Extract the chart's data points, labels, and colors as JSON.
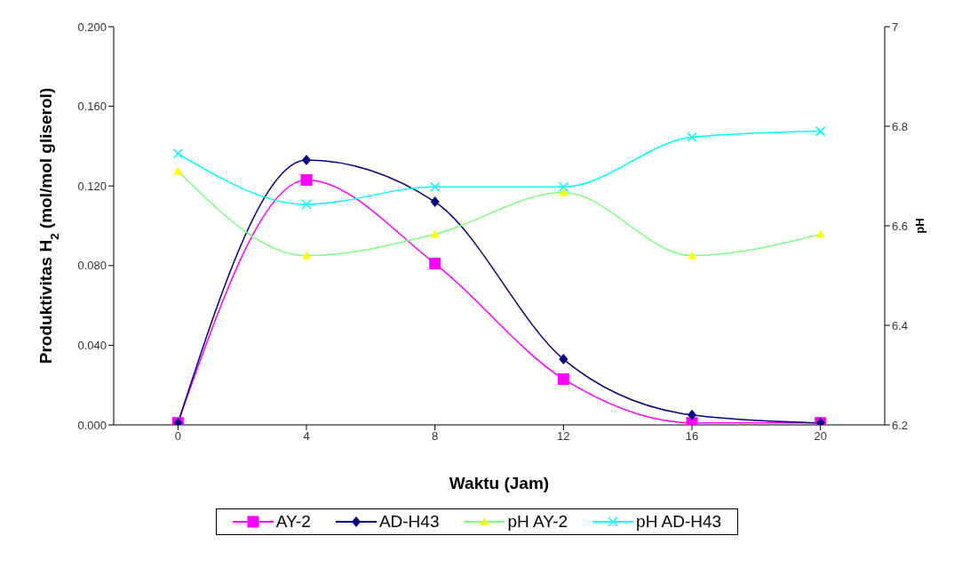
{
  "chart_data": {
    "type": "line",
    "xlabel": "Waktu (Jam)",
    "ylabel": "Produktivitas H$_{2}$ (mol/mol gliserol)",
    "y2label": "pH",
    "x": [
      0,
      4,
      8,
      12,
      16,
      20
    ],
    "xlim": [
      -2,
      22
    ],
    "xticks": [
      0,
      4,
      8,
      12,
      16,
      20
    ],
    "ylim": [
      0,
      0.2
    ],
    "yticks": [
      {
        "value": 0,
        "label": "0.000"
      },
      {
        "value": 0.04,
        "label": "0.040"
      },
      {
        "value": 0.08,
        "label": "0.080"
      },
      {
        "value": 0.12,
        "label": "0.120"
      },
      {
        "value": 0.16,
        "label": "0.160"
      },
      {
        "value": 0.2,
        "label": "0.200"
      }
    ],
    "y2lim": [
      6.2,
      7
    ],
    "y2ticks": [
      6.2,
      6.4,
      6.6,
      6.8,
      7
    ],
    "series": [
      {
        "name": "AY-2",
        "color": "#ff00ff",
        "marker": "square",
        "values": [
          0.001,
          0.123,
          0.081,
          0.023,
          0.001,
          0.001
        ]
      },
      {
        "name": "AD-H43",
        "color": "#000080",
        "marker": "diamond",
        "values": [
          0.001,
          0.133,
          0.112,
          0.033,
          0.005,
          0.001
        ]
      },
      {
        "name": "pH  AY-2",
        "color": "#80ff80",
        "marker": "triangle",
        "axis": "y2",
        "values": [
          6.71,
          6.54,
          6.583,
          6.667,
          6.54,
          6.583
        ]
      },
      {
        "name": "pH AD-H43",
        "color": "#00ffff",
        "marker": "cross",
        "axis": "y2",
        "values": [
          6.745,
          6.643,
          6.678,
          6.678,
          6.778,
          6.79
        ]
      }
    ],
    "legend": "bottom",
    "line_style": "solid"
  }
}
